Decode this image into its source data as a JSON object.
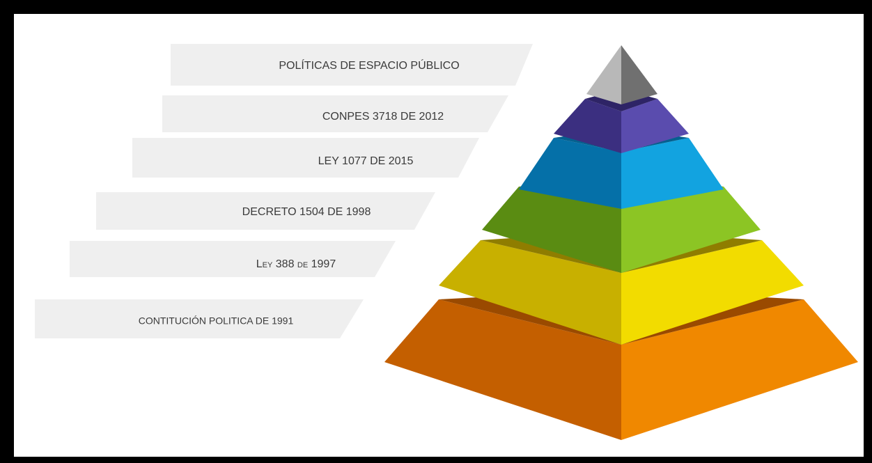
{
  "pyramid": {
    "levels": [
      {
        "label": "POLÍTICAS DE ESPACIO PÚBLICO"
      },
      {
        "label": "CONPES 3718 DE 2012"
      },
      {
        "label": "LEY 1077 DE 2015"
      },
      {
        "label": "DECRETO 1504 DE 1998"
      },
      {
        "label": "Ley 388 de 1997"
      },
      {
        "label": "CONTITUCIÓN POLITICA DE 1991"
      }
    ]
  }
}
